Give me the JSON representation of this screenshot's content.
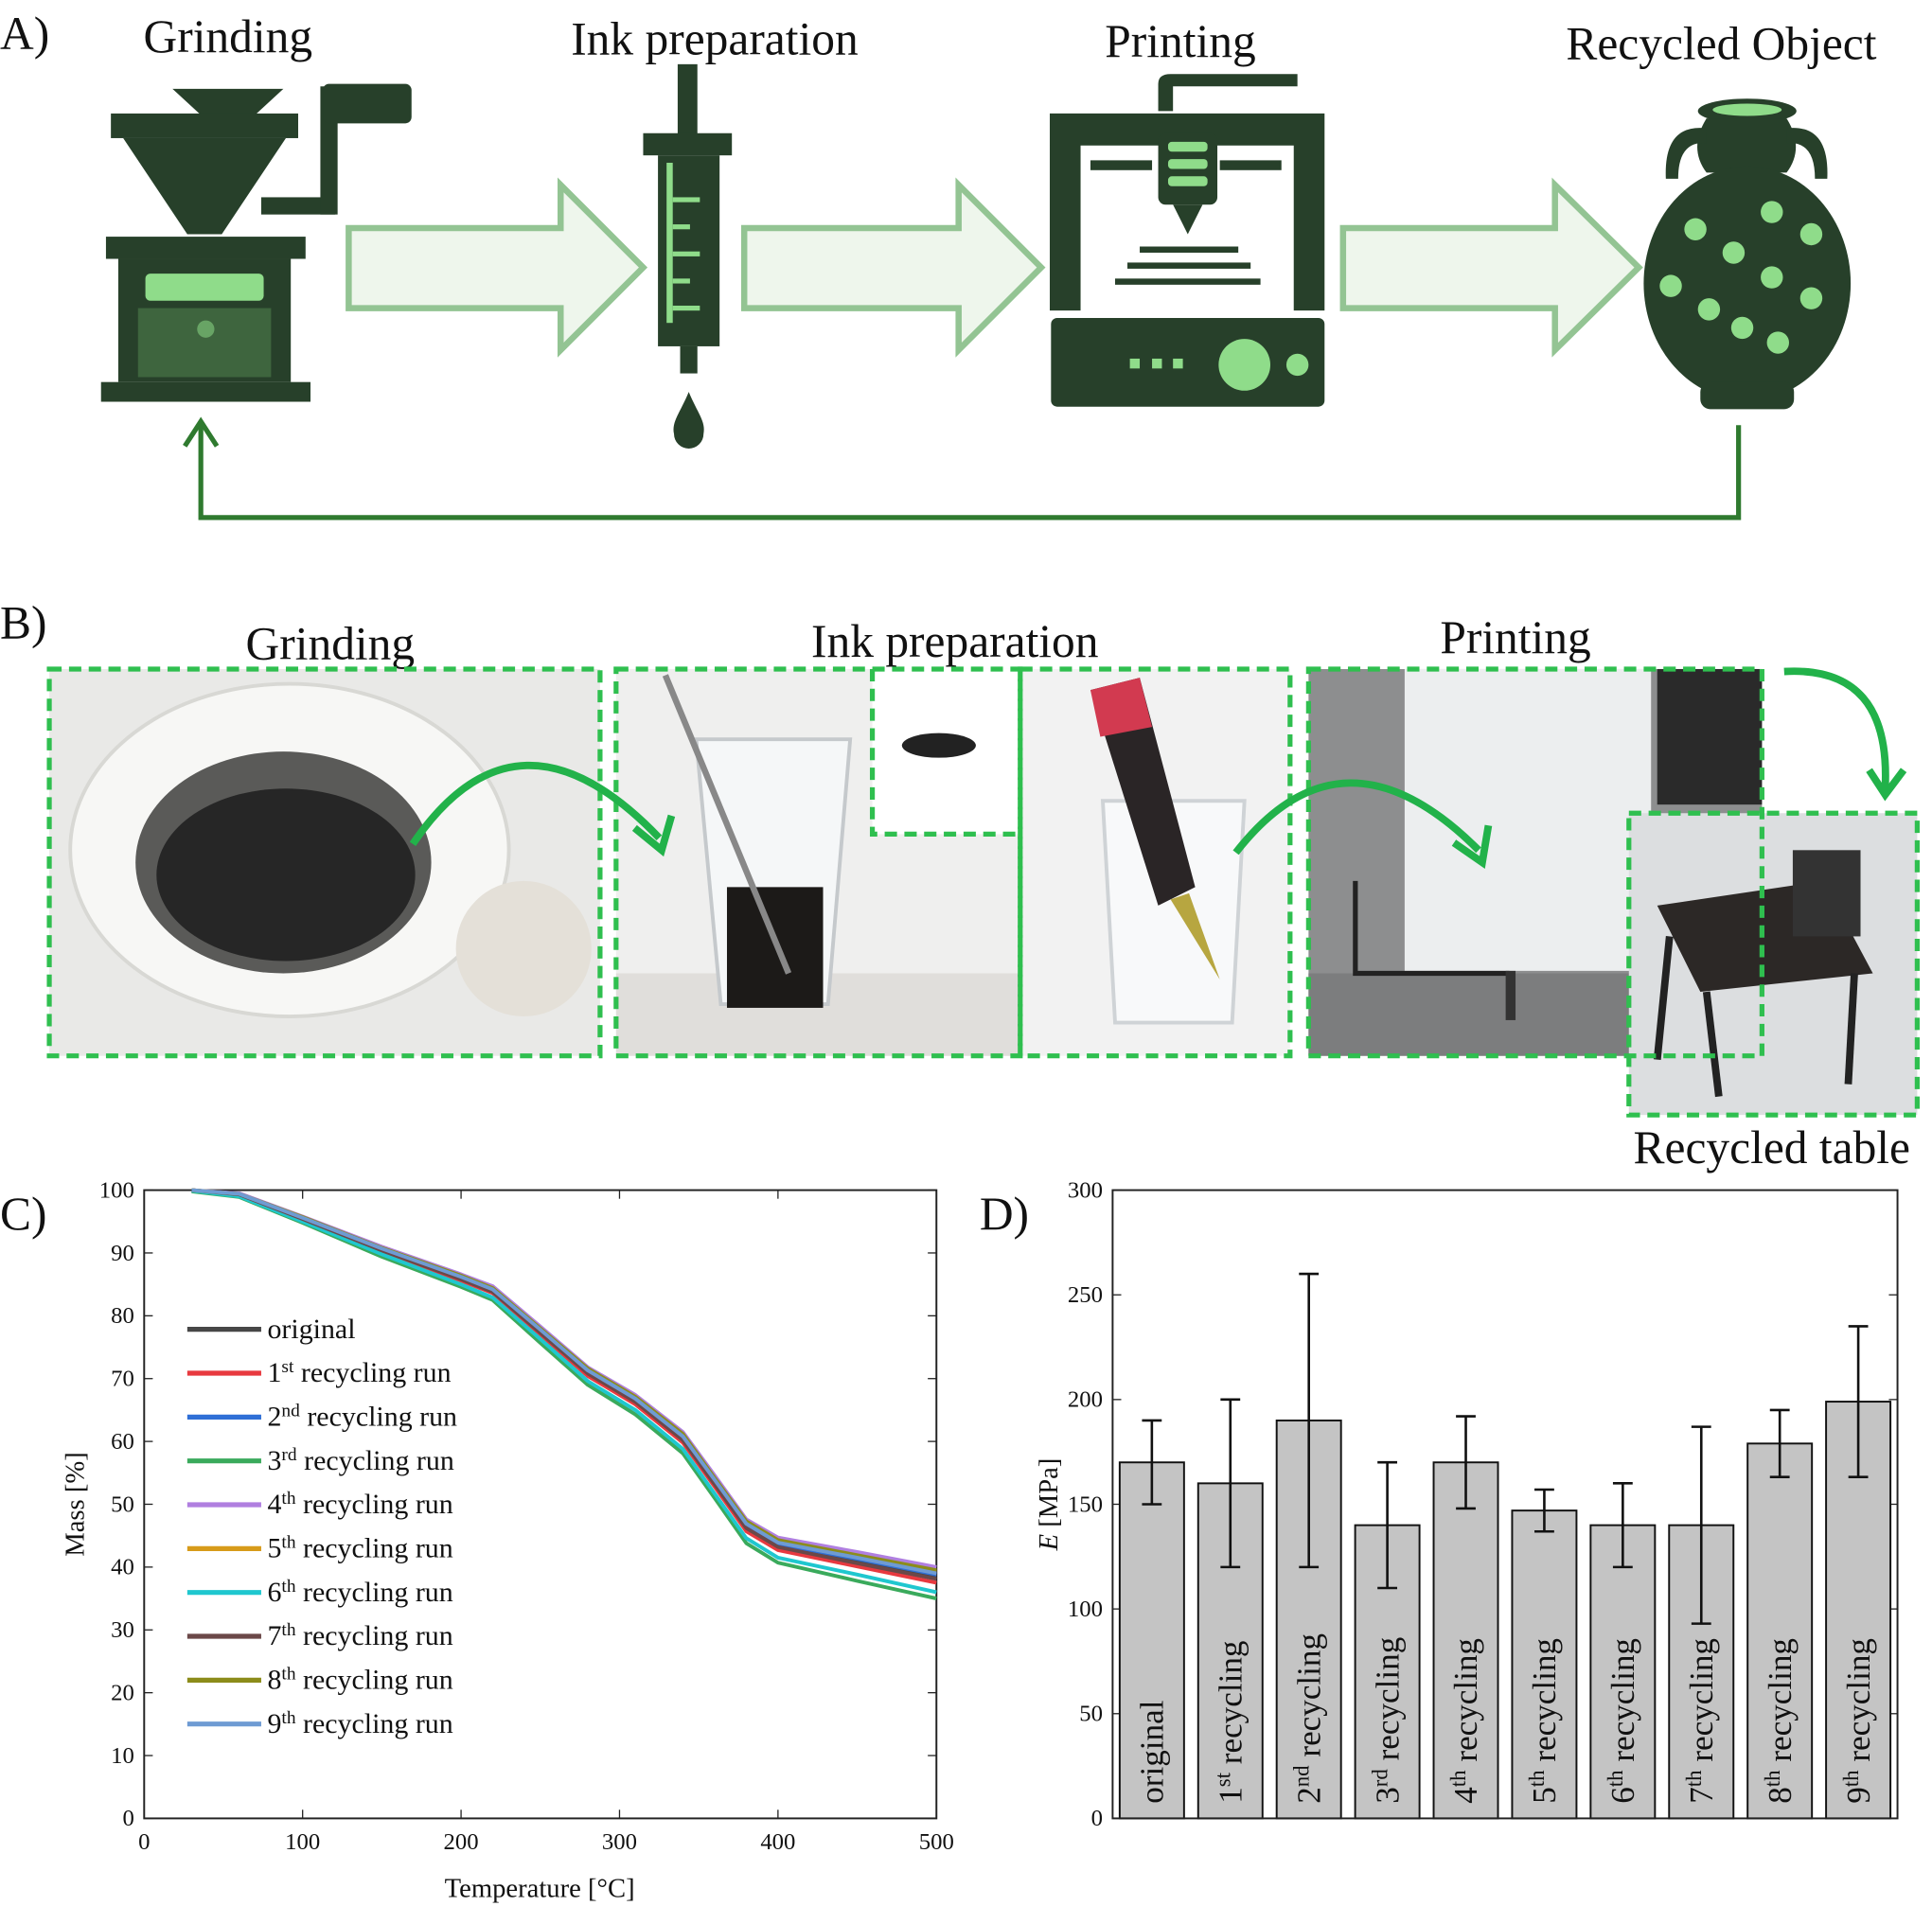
{
  "panel_a": {
    "label": "A)",
    "steps": [
      "Grinding",
      "Ink preparation",
      "Printing",
      "Recycled Object"
    ],
    "colors": {
      "dark": "#27402a",
      "light": "#8fdc8a",
      "arrow_fill": "#eef6ec",
      "arrow_stroke": "#93c493",
      "loop": "#2f7a2f"
    }
  },
  "panel_b": {
    "label": "B)",
    "steps": [
      "Grinding",
      "Ink preparation",
      "Printing"
    ],
    "result": "Recycled table",
    "colors": {
      "border": "#2fbf4f",
      "arrow": "#22b24a"
    }
  },
  "chart_data": [
    {
      "panel": "C)",
      "type": "line",
      "xlabel": "Temperature [°C]",
      "ylabel": "Mass [%]",
      "xlim": [
        0,
        500
      ],
      "ylim": [
        0,
        100
      ],
      "xticks": [
        0,
        100,
        200,
        300,
        400,
        500
      ],
      "yticks": [
        0,
        10,
        20,
        30,
        40,
        50,
        60,
        70,
        80,
        90,
        100
      ],
      "grid": false,
      "legend": "left",
      "x": [
        30,
        60,
        100,
        150,
        200,
        220,
        250,
        280,
        310,
        340,
        360,
        380,
        400,
        450,
        500
      ],
      "series": [
        {
          "name": "original",
          "num": "",
          "sup": "",
          "rest": "original",
          "color": "#474747",
          "values": [
            100,
            99.3,
            95.5,
            90.5,
            86,
            84,
            77.5,
            71,
            66.5,
            60.5,
            53.5,
            46.5,
            43.5,
            41,
            38.5
          ]
        },
        {
          "name": "1st recycling run",
          "num": "1",
          "sup": "st",
          "rest": " recycling run",
          "color": "#e8393f",
          "values": [
            99.9,
            99.2,
            95.3,
            90.2,
            85.6,
            83.6,
            77,
            70.4,
            65.9,
            59.8,
            52.8,
            45.7,
            42.7,
            40.1,
            37.5
          ]
        },
        {
          "name": "2nd recycling run",
          "num": "2",
          "sup": "nd",
          "rest": " recycling run",
          "color": "#2f6fd6",
          "values": [
            100,
            99.3,
            95.6,
            90.6,
            86.1,
            84.1,
            77.7,
            71.2,
            66.7,
            60.7,
            53.7,
            46.7,
            43.7,
            41.3,
            38.8
          ]
        },
        {
          "name": "3rd recycling run",
          "num": "3",
          "sup": "rd",
          "rest": " recycling run",
          "color": "#3aaa5c",
          "values": [
            99.8,
            98.9,
            94.8,
            89.4,
            84.6,
            82.5,
            75.7,
            69,
            64.3,
            58.1,
            51,
            43.8,
            40.7,
            37.8,
            35
          ]
        },
        {
          "name": "4th recycling run",
          "num": "4",
          "sup": "th",
          "rest": " recycling run",
          "color": "#b07fe0",
          "values": [
            100,
            99.5,
            95.8,
            91,
            86.6,
            84.7,
            78.3,
            71.8,
            67.4,
            61.5,
            54.6,
            47.6,
            44.7,
            42.4,
            40
          ]
        },
        {
          "name": "5th recycling run",
          "num": "5",
          "sup": "th",
          "rest": " recycling run",
          "color": "#d79b1a",
          "values": [
            100,
            99.4,
            95.7,
            90.7,
            86.3,
            84.4,
            77.9,
            71.4,
            67,
            61,
            54.1,
            47.1,
            44.1,
            41.7,
            39.3
          ]
        },
        {
          "name": "6th recycling run",
          "num": "6",
          "sup": "th",
          "rest": " recycling run",
          "color": "#1fc7cf",
          "values": [
            99.9,
            99,
            95,
            89.8,
            85,
            82.9,
            76.3,
            69.6,
            65,
            58.8,
            51.7,
            44.6,
            41.5,
            38.8,
            36
          ]
        },
        {
          "name": "7th recycling run",
          "num": "7",
          "sup": "th",
          "rest": " recycling run",
          "color": "#6b4848",
          "values": [
            100,
            99.3,
            95.4,
            90.4,
            85.8,
            83.8,
            77.3,
            70.8,
            66.3,
            60.2,
            53.2,
            46.2,
            43.2,
            40.6,
            38.1
          ]
        },
        {
          "name": "8th recycling run",
          "num": "8",
          "sup": "th",
          "rest": " recycling run",
          "color": "#8c8c1a",
          "values": [
            100,
            99.4,
            95.7,
            90.8,
            86.4,
            84.4,
            78,
            71.6,
            67.1,
            61.2,
            54.2,
            47.3,
            44.3,
            41.9,
            39.5
          ]
        },
        {
          "name": "9th recycling run",
          "num": "9",
          "sup": "th",
          "rest": " recycling run",
          "color": "#6e9bd3",
          "values": [
            100,
            99.4,
            95.6,
            90.7,
            86.2,
            84.2,
            77.8,
            71.3,
            66.8,
            60.8,
            53.9,
            46.9,
            43.9,
            41.5,
            39
          ]
        }
      ]
    },
    {
      "panel": "D)",
      "type": "bar",
      "ylabel_italic": "E",
      "ylabel_rest": " [MPa]",
      "ylim": [
        0,
        300
      ],
      "yticks": [
        0,
        50,
        100,
        150,
        200,
        250,
        300
      ],
      "grid": false,
      "bar_color": "#c4c4c4",
      "categories": [
        {
          "num": "",
          "sup": "",
          "rest": "original"
        },
        {
          "num": "1",
          "sup": "st",
          "rest": " recycling"
        },
        {
          "num": "2",
          "sup": "nd",
          "rest": " recycling"
        },
        {
          "num": "3",
          "sup": "rd",
          "rest": " recycling"
        },
        {
          "num": "4",
          "sup": "th",
          "rest": " recycling"
        },
        {
          "num": "5",
          "sup": "th",
          "rest": " recycling"
        },
        {
          "num": "6",
          "sup": "th",
          "rest": " recycling"
        },
        {
          "num": "7",
          "sup": "th",
          "rest": " recycling"
        },
        {
          "num": "8",
          "sup": "th",
          "rest": " recycling"
        },
        {
          "num": "9",
          "sup": "th",
          "rest": " recycling"
        }
      ],
      "values": [
        170,
        160,
        190,
        140,
        170,
        147,
        140,
        140,
        179,
        199
      ],
      "err_low": [
        150,
        120,
        120,
        110,
        148,
        137,
        120,
        93,
        163,
        163
      ],
      "err_high": [
        190,
        200,
        260,
        170,
        192,
        157,
        160,
        187,
        195,
        235
      ]
    }
  ]
}
